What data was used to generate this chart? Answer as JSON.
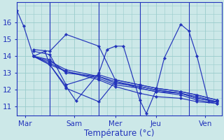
{
  "title": "",
  "xlabel": "Température (°c)",
  "ylabel": "",
  "bg_color": "#cce8e8",
  "line_color": "#2233bb",
  "grid_color": "#99cccc",
  "axis_color": "#2233bb",
  "tick_label_color": "#2233bb",
  "xlabel_color": "#2233bb",
  "ylim": [
    10.5,
    17.2
  ],
  "yticks": [
    11,
    12,
    13,
    14,
    15,
    16
  ],
  "xlim": [
    0.0,
    12.5
  ],
  "xtick_positions": [
    0.5,
    3.5,
    6.0,
    8.5,
    11.5
  ],
  "xtick_labels": [
    "Mar",
    "Sam",
    "Mer",
    "Jeu",
    "Ven"
  ],
  "vline_positions": [
    2.0,
    5.0,
    7.5,
    10.5
  ],
  "series": [
    [
      0.0,
      16.7,
      0.4,
      15.8,
      1.0,
      14.0,
      1.7,
      14.3,
      2.0,
      13.5,
      3.0,
      12.2,
      3.6,
      11.35,
      5.0,
      13.0,
      5.5,
      14.4,
      6.0,
      14.6,
      6.5,
      14.6,
      7.5,
      11.4,
      7.9,
      10.6,
      8.5,
      12.0,
      9.0,
      13.9,
      10.0,
      15.9,
      10.5,
      15.5,
      11.0,
      14.0,
      11.7,
      11.3,
      12.2,
      11.3
    ],
    [
      1.0,
      14.0,
      2.0,
      13.8,
      3.0,
      13.0,
      5.0,
      12.8,
      6.0,
      12.5,
      7.5,
      12.1,
      8.5,
      11.9,
      10.0,
      11.8,
      11.0,
      11.6,
      12.2,
      11.3
    ],
    [
      1.0,
      14.0,
      2.0,
      13.6,
      3.0,
      13.1,
      5.0,
      12.6,
      6.0,
      12.2,
      7.5,
      11.8,
      8.5,
      11.6,
      10.0,
      11.5,
      11.0,
      11.3,
      12.2,
      11.2
    ],
    [
      1.0,
      14.0,
      2.0,
      13.5,
      3.0,
      13.1,
      5.0,
      12.7,
      6.0,
      12.3,
      7.5,
      12.1,
      8.5,
      11.9,
      10.0,
      11.7,
      11.0,
      11.4,
      12.2,
      11.2
    ],
    [
      1.0,
      14.0,
      2.0,
      13.7,
      3.0,
      13.2,
      5.0,
      12.8,
      6.0,
      12.4,
      7.5,
      12.2,
      8.5,
      12.0,
      10.0,
      11.8,
      11.0,
      11.5,
      12.2,
      11.3
    ],
    [
      1.0,
      14.3,
      2.0,
      14.1,
      3.0,
      12.3,
      5.0,
      12.9,
      6.0,
      12.6,
      7.5,
      12.3,
      8.5,
      12.1,
      10.0,
      11.9,
      11.0,
      11.7,
      12.2,
      11.4
    ],
    [
      1.0,
      14.4,
      2.0,
      14.3,
      3.0,
      15.3,
      5.0,
      14.6,
      6.0,
      12.6,
      7.5,
      12.3,
      8.5,
      12.1,
      10.0,
      11.9,
      11.0,
      11.7,
      12.2,
      11.4
    ],
    [
      1.0,
      14.0,
      2.0,
      13.5,
      3.0,
      12.1,
      5.0,
      11.3,
      6.0,
      12.5,
      7.5,
      12.2,
      8.5,
      12.0,
      10.0,
      11.8,
      11.0,
      11.5,
      12.2,
      11.3
    ]
  ]
}
